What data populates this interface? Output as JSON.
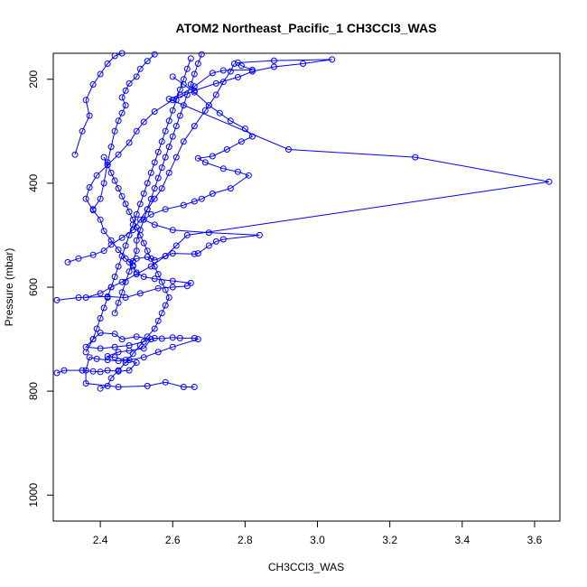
{
  "chart_data": {
    "type": "line",
    "title": "ATOM2 Northeast_Pacific_1 CH3CCl3_WAS",
    "xlabel": "CH3CCl3_WAS",
    "ylabel": "Pressure (mbar)",
    "xlim": [
      2.27,
      3.67
    ],
    "ylim": [
      1050,
      150
    ],
    "y_reversed": true,
    "grid": false,
    "x_ticks": [
      2.4,
      2.6,
      2.8,
      3.0,
      3.2,
      3.4,
      3.6
    ],
    "x_tick_labels": [
      "2.4",
      "2.6",
      "2.8",
      "3.0",
      "3.2",
      "3.4",
      "3.6"
    ],
    "y_ticks": [
      200,
      400,
      600,
      800,
      1000
    ],
    "y_tick_labels": [
      "200",
      "400",
      "600",
      "800",
      "1000"
    ],
    "colors": {
      "series": "#0000ff"
    },
    "series": [
      {
        "points": [
          [
            2.28,
            765
          ],
          [
            2.3,
            760
          ],
          [
            2.35,
            760
          ],
          [
            2.38,
            762
          ],
          [
            2.4,
            763
          ],
          [
            2.42,
            760
          ],
          [
            2.45,
            762
          ],
          [
            2.48,
            760
          ],
          [
            2.5,
            745
          ],
          [
            2.47,
            740
          ],
          [
            2.44,
            735
          ],
          [
            2.42,
            733
          ],
          [
            2.45,
            725
          ],
          [
            2.48,
            722
          ],
          [
            2.52,
            718
          ],
          [
            2.54,
            700
          ],
          [
            2.5,
            695
          ],
          [
            2.46,
            700
          ],
          [
            2.44,
            690
          ],
          [
            2.4,
            688
          ],
          [
            2.38,
            700
          ],
          [
            2.36,
            715
          ],
          [
            2.4,
            718
          ],
          [
            2.44,
            715
          ],
          [
            2.48,
            712
          ],
          [
            2.52,
            705
          ],
          [
            2.55,
            698
          ],
          [
            2.57,
            699
          ],
          [
            2.6,
            697
          ],
          [
            2.62,
            698
          ],
          [
            2.66,
            698
          ],
          [
            2.67,
            700
          ],
          [
            2.6,
            715
          ],
          [
            2.56,
            725
          ],
          [
            2.52,
            735
          ],
          [
            2.48,
            740
          ],
          [
            2.45,
            742
          ],
          [
            2.42,
            740
          ],
          [
            2.39,
            738
          ],
          [
            2.37,
            735
          ],
          [
            2.36,
            760
          ],
          [
            2.36,
            785
          ],
          [
            2.45,
            792
          ],
          [
            2.53,
            790
          ],
          [
            2.58,
            783
          ],
          [
            2.63,
            792
          ],
          [
            2.66,
            792
          ]
        ]
      },
      {
        "points": [
          [
            2.28,
            625
          ],
          [
            2.34,
            620
          ],
          [
            2.42,
            618
          ],
          [
            2.47,
            620
          ],
          [
            2.51,
            612
          ],
          [
            2.56,
            602
          ],
          [
            2.6,
            600
          ],
          [
            2.64,
            598
          ],
          [
            2.65,
            592
          ],
          [
            2.6,
            588
          ],
          [
            2.55,
            584
          ],
          [
            2.52,
            580
          ],
          [
            2.5,
            572
          ],
          [
            2.49,
            560
          ],
          [
            2.48,
            552
          ],
          [
            2.5,
            545
          ],
          [
            2.53,
            542
          ],
          [
            2.55,
            548
          ],
          [
            2.58,
            540
          ],
          [
            2.6,
            535
          ],
          [
            2.66,
            536
          ],
          [
            2.67,
            535
          ],
          [
            2.7,
            520
          ],
          [
            2.72,
            512
          ],
          [
            2.74,
            508
          ],
          [
            2.84,
            500
          ],
          [
            2.7,
            495
          ],
          [
            2.6,
            490
          ],
          [
            2.55,
            480
          ],
          [
            2.52,
            470
          ],
          [
            2.54,
            460
          ],
          [
            2.58,
            450
          ],
          [
            2.63,
            442
          ],
          [
            2.66,
            435
          ],
          [
            2.68,
            430
          ],
          [
            2.71,
            420
          ],
          [
            2.76,
            410
          ],
          [
            2.81,
            385
          ],
          [
            2.78,
            378
          ],
          [
            2.74,
            372
          ],
          [
            2.69,
            360
          ],
          [
            2.67,
            352
          ],
          [
            2.71,
            348
          ],
          [
            2.75,
            335
          ],
          [
            2.79,
            320
          ],
          [
            2.82,
            310
          ],
          [
            2.8,
            295
          ],
          [
            2.76,
            280
          ],
          [
            2.73,
            265
          ],
          [
            2.7,
            250
          ],
          [
            2.66,
            225
          ],
          [
            2.63,
            210
          ],
          [
            2.6,
            195
          ]
        ]
      },
      {
        "points": [
          [
            2.36,
            620
          ],
          [
            2.4,
            612
          ],
          [
            2.43,
            600
          ],
          [
            2.46,
            590
          ],
          [
            2.5,
            575
          ],
          [
            2.54,
            560
          ],
          [
            2.58,
            540
          ],
          [
            2.61,
            520
          ],
          [
            2.64,
            500
          ],
          [
            3.64,
            397
          ],
          [
            3.27,
            350
          ],
          [
            2.92,
            335
          ],
          [
            2.59,
            238
          ],
          [
            2.62,
            230
          ],
          [
            2.66,
            214
          ],
          [
            2.71,
            188
          ],
          [
            2.74,
            183
          ],
          [
            2.82,
            182
          ],
          [
            2.79,
            174
          ],
          [
            2.78,
            168
          ],
          [
            2.88,
            164
          ],
          [
            3.04,
            162
          ],
          [
            2.96,
            170
          ],
          [
            2.88,
            176
          ],
          [
            2.82,
            185
          ],
          [
            2.78,
            196
          ],
          [
            2.72,
            208
          ],
          [
            2.66,
            222
          ],
          [
            2.6,
            240
          ],
          [
            2.55,
            262
          ],
          [
            2.52,
            282
          ],
          [
            2.5,
            300
          ],
          [
            2.48,
            322
          ],
          [
            2.45,
            345
          ],
          [
            2.42,
            365
          ],
          [
            2.39,
            385
          ],
          [
            2.37,
            408
          ],
          [
            2.36,
            430
          ],
          [
            2.38,
            452
          ],
          [
            2.4,
            470
          ],
          [
            2.41,
            492
          ],
          [
            2.43,
            510
          ],
          [
            2.45,
            528
          ],
          [
            2.47,
            545
          ],
          [
            2.49,
            558
          ]
        ]
      },
      {
        "points": [
          [
            2.31,
            552
          ],
          [
            2.34,
            545
          ],
          [
            2.38,
            538
          ],
          [
            2.41,
            530
          ],
          [
            2.43,
            518
          ],
          [
            2.46,
            505
          ],
          [
            2.49,
            490
          ],
          [
            2.51,
            470
          ],
          [
            2.53,
            450
          ],
          [
            2.55,
            430
          ],
          [
            2.57,
            410
          ],
          [
            2.59,
            380
          ],
          [
            2.61,
            350
          ],
          [
            2.63,
            320
          ],
          [
            2.66,
            290
          ],
          [
            2.69,
            260
          ],
          [
            2.72,
            230
          ],
          [
            2.74,
            205
          ],
          [
            2.76,
            185
          ],
          [
            2.77,
            170
          ]
        ]
      },
      {
        "points": [
          [
            2.33,
            345
          ],
          [
            2.35,
            300
          ],
          [
            2.37,
            270
          ],
          [
            2.36,
            240
          ],
          [
            2.38,
            210
          ],
          [
            2.4,
            190
          ],
          [
            2.42,
            170
          ],
          [
            2.44,
            155
          ],
          [
            2.46,
            150
          ]
        ]
      },
      {
        "points": [
          [
            2.38,
            450
          ],
          [
            2.4,
            430
          ],
          [
            2.41,
            400
          ],
          [
            2.42,
            360
          ],
          [
            2.43,
            330
          ],
          [
            2.44,
            300
          ],
          [
            2.45,
            280
          ],
          [
            2.46,
            265
          ],
          [
            2.47,
            250
          ],
          [
            2.46,
            235
          ],
          [
            2.47,
            222
          ],
          [
            2.48,
            208
          ],
          [
            2.5,
            195
          ],
          [
            2.51,
            180
          ],
          [
            2.53,
            165
          ],
          [
            2.55,
            152
          ]
        ]
      },
      {
        "points": [
          [
            2.44,
            650
          ],
          [
            2.45,
            630
          ],
          [
            2.46,
            610
          ],
          [
            2.47,
            590
          ],
          [
            2.48,
            570
          ],
          [
            2.49,
            550
          ],
          [
            2.5,
            530
          ],
          [
            2.5,
            510
          ],
          [
            2.51,
            490
          ],
          [
            2.52,
            470
          ],
          [
            2.53,
            450
          ],
          [
            2.54,
            430
          ],
          [
            2.55,
            410
          ],
          [
            2.56,
            390
          ],
          [
            2.57,
            370
          ],
          [
            2.58,
            350
          ],
          [
            2.59,
            330
          ],
          [
            2.6,
            310
          ],
          [
            2.61,
            290
          ],
          [
            2.62,
            270
          ],
          [
            2.63,
            250
          ],
          [
            2.64,
            230
          ],
          [
            2.65,
            210
          ],
          [
            2.66,
            190
          ],
          [
            2.67,
            170
          ],
          [
            2.68,
            152
          ]
        ]
      },
      {
        "points": [
          [
            2.36,
            725
          ],
          [
            2.38,
            700
          ],
          [
            2.39,
            680
          ],
          [
            2.4,
            660
          ],
          [
            2.41,
            640
          ],
          [
            2.42,
            620
          ],
          [
            2.43,
            600
          ],
          [
            2.44,
            580
          ],
          [
            2.45,
            560
          ],
          [
            2.46,
            540
          ],
          [
            2.47,
            520
          ],
          [
            2.48,
            500
          ],
          [
            2.49,
            480
          ],
          [
            2.5,
            460
          ],
          [
            2.51,
            440
          ],
          [
            2.52,
            420
          ],
          [
            2.53,
            400
          ],
          [
            2.54,
            380
          ],
          [
            2.55,
            360
          ],
          [
            2.56,
            340
          ],
          [
            2.57,
            320
          ],
          [
            2.58,
            300
          ],
          [
            2.59,
            280
          ],
          [
            2.6,
            260
          ],
          [
            2.61,
            240
          ],
          [
            2.62,
            220
          ],
          [
            2.63,
            200
          ],
          [
            2.64,
            180
          ],
          [
            2.65,
            160
          ]
        ]
      },
      {
        "points": [
          [
            2.4,
            795
          ],
          [
            2.42,
            790
          ],
          [
            2.43,
            775
          ],
          [
            2.45,
            760
          ],
          [
            2.47,
            745
          ],
          [
            2.49,
            728
          ],
          [
            2.51,
            712
          ],
          [
            2.53,
            695
          ],
          [
            2.55,
            680
          ],
          [
            2.56,
            665
          ],
          [
            2.57,
            650
          ],
          [
            2.58,
            635
          ],
          [
            2.59,
            620
          ],
          [
            2.58,
            605
          ],
          [
            2.57,
            590
          ],
          [
            2.56,
            575
          ],
          [
            2.55,
            560
          ],
          [
            2.54,
            545
          ],
          [
            2.53,
            530
          ],
          [
            2.52,
            515
          ],
          [
            2.51,
            500
          ],
          [
            2.5,
            485
          ],
          [
            2.49,
            470
          ],
          [
            2.48,
            455
          ],
          [
            2.47,
            440
          ],
          [
            2.46,
            425
          ],
          [
            2.45,
            410
          ],
          [
            2.44,
            395
          ],
          [
            2.43,
            380
          ],
          [
            2.42,
            365
          ],
          [
            2.41,
            350
          ]
        ]
      }
    ]
  }
}
